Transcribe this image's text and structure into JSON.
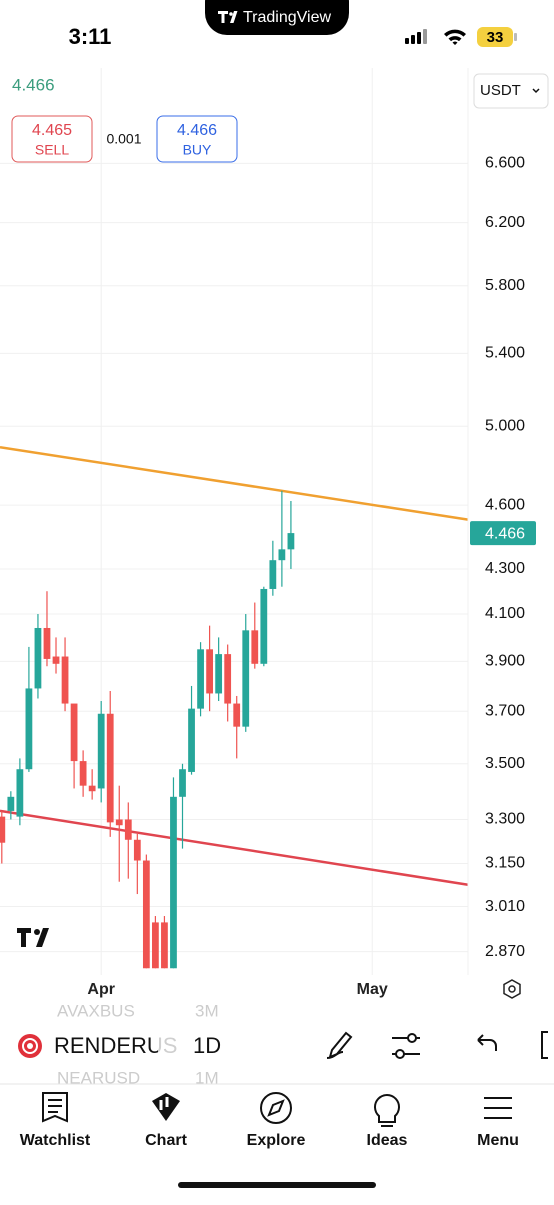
{
  "status_bar": {
    "time": "3:11",
    "app": "TradingView",
    "battery": "33"
  },
  "quote": {
    "last": 4.466,
    "sell_price": 4.465,
    "sell_label": "SELL",
    "spread": 0.001,
    "buy_price": 4.466,
    "buy_label": "BUY",
    "currency": "USDT"
  },
  "chart_data": {
    "type": "candlestick",
    "log_scale": true,
    "grid": true,
    "up_color": "#26a69a",
    "down_color": "#ef5350",
    "x": [
      0,
      1,
      2,
      3,
      4,
      5,
      6,
      7,
      8,
      9,
      10,
      11,
      12,
      13,
      14,
      15,
      16,
      17,
      18,
      19,
      20,
      21,
      22,
      23,
      24,
      25,
      26,
      27,
      28,
      29,
      30,
      31,
      32
    ],
    "open": [
      3.31,
      3.33,
      3.31,
      3.48,
      3.79,
      4.04,
      3.92,
      3.92,
      3.73,
      3.51,
      3.42,
      3.41,
      3.69,
      3.3,
      3.3,
      3.23,
      3.16,
      2.96,
      2.96,
      2.82,
      3.38,
      3.47,
      3.71,
      3.95,
      3.77,
      3.93,
      3.73,
      3.64,
      4.03,
      3.89,
      4.21,
      4.34,
      4.39
    ],
    "high": [
      3.33,
      3.4,
      3.52,
      3.96,
      4.1,
      4.2,
      4.0,
      4.0,
      3.72,
      3.55,
      3.48,
      3.74,
      3.78,
      3.42,
      3.36,
      3.25,
      3.18,
      2.98,
      2.98,
      3.45,
      3.5,
      3.8,
      3.98,
      4.05,
      4.0,
      3.97,
      3.76,
      4.1,
      4.15,
      4.22,
      4.43,
      4.67,
      4.62
    ],
    "low": [
      3.15,
      3.3,
      3.28,
      3.47,
      3.75,
      3.88,
      3.85,
      3.7,
      3.41,
      3.38,
      3.37,
      3.36,
      3.24,
      3.09,
      3.1,
      3.05,
      2.82,
      2.82,
      2.82,
      2.82,
      3.2,
      3.46,
      3.68,
      3.7,
      3.74,
      3.66,
      3.52,
      3.62,
      3.87,
      3.88,
      4.18,
      4.22,
      4.3
    ],
    "close": [
      3.22,
      3.38,
      3.48,
      3.79,
      4.04,
      3.91,
      3.89,
      3.73,
      3.51,
      3.42,
      3.4,
      3.69,
      3.29,
      3.28,
      3.23,
      3.16,
      2.82,
      2.82,
      2.82,
      3.38,
      3.48,
      3.71,
      3.95,
      3.77,
      3.93,
      3.73,
      3.64,
      4.03,
      3.89,
      4.21,
      4.34,
      4.39,
      4.466
    ],
    "xlim": [
      -0.2,
      51.6
    ],
    "xticks": [
      {
        "value": 11,
        "label": "Apr"
      },
      {
        "value": 41,
        "label": "May"
      }
    ],
    "ylim": [
      2.8,
      7.3
    ],
    "yticks": [
      {
        "value": 6.6,
        "label": "6.600"
      },
      {
        "value": 6.2,
        "label": "6.200"
      },
      {
        "value": 5.8,
        "label": "5.800"
      },
      {
        "value": 5.4,
        "label": "5.400"
      },
      {
        "value": 5.0,
        "label": "5.000"
      },
      {
        "value": 4.6,
        "label": "4.600"
      },
      {
        "value": 4.3,
        "label": "4.300"
      },
      {
        "value": 4.1,
        "label": "4.100"
      },
      {
        "value": 3.9,
        "label": "3.900"
      },
      {
        "value": 3.7,
        "label": "3.700"
      },
      {
        "value": 3.5,
        "label": "3.500"
      },
      {
        "value": 3.3,
        "label": "3.300"
      },
      {
        "value": 3.15,
        "label": "3.150"
      },
      {
        "value": 3.01,
        "label": "3.010"
      },
      {
        "value": 2.87,
        "label": "2.870"
      }
    ],
    "trend_lines": [
      {
        "color": "#f0a030",
        "x": [
          -0.2,
          51.6
        ],
        "y": [
          4.89,
          4.53
        ]
      },
      {
        "color": "#e0454f",
        "x": [
          -0.2,
          51.6
        ],
        "y": [
          3.33,
          3.08
        ]
      }
    ]
  },
  "toolbar": {
    "symbol": "RENDERUS",
    "interval": "1D",
    "prev_symbol": "AVAXBUS",
    "prev_interval": "3M",
    "next_symbol": "NEARUSD",
    "next_interval": "1M"
  },
  "tabs": [
    "Watchlist",
    "Chart",
    "Explore",
    "Ideas",
    "Menu"
  ]
}
